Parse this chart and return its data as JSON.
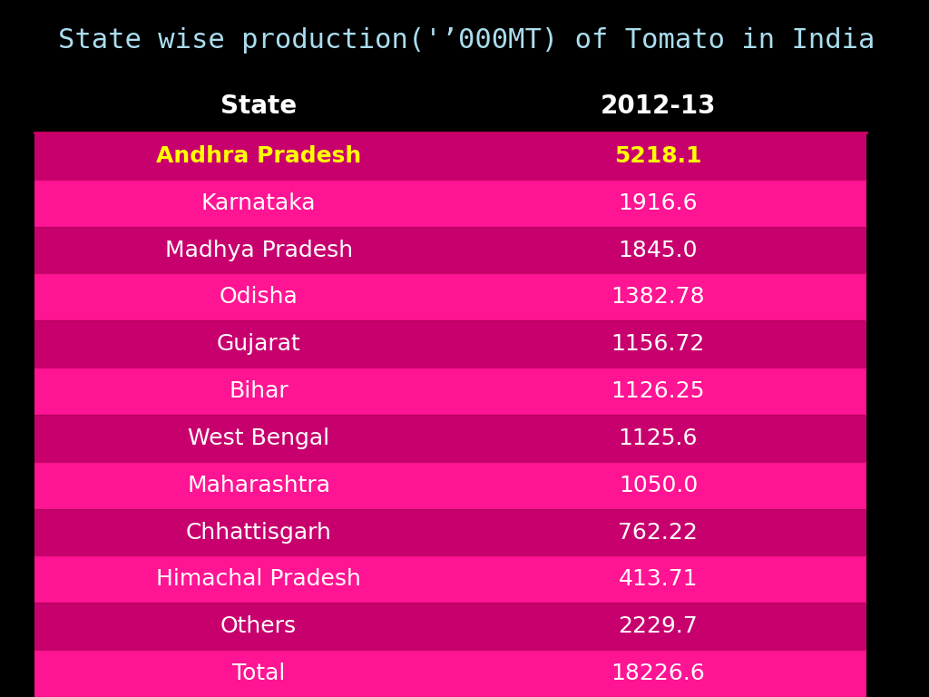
{
  "title": "State wise production('’000MT) of Tomato in India",
  "header": [
    "State",
    "2012-13"
  ],
  "rows": [
    {
      "state": "Andhra Pradesh",
      "value": "5218.1",
      "highlight": true
    },
    {
      "state": "Karnataka",
      "value": "1916.6",
      "highlight": false
    },
    {
      "state": "Madhya Pradesh",
      "value": "1845.0",
      "highlight": false
    },
    {
      "state": "Odisha",
      "value": "1382.78",
      "highlight": false
    },
    {
      "state": "Gujarat",
      "value": "1156.72",
      "highlight": false
    },
    {
      "state": "Bihar",
      "value": "1126.25",
      "highlight": false
    },
    {
      "state": "West Bengal",
      "value": "1125.6",
      "highlight": false
    },
    {
      "state": "Maharashtra",
      "value": "1050.0",
      "highlight": false
    },
    {
      "state": "Chhattisgarh",
      "value": "762.22",
      "highlight": false
    },
    {
      "state": "Himachal Pradesh",
      "value": "413.71",
      "highlight": false
    },
    {
      "state": "Others",
      "value": "2229.7",
      "highlight": false
    },
    {
      "state": "Total",
      "value": "18226.6",
      "highlight": false
    }
  ],
  "title_bg": "#000000",
  "title_color": "#aaddee",
  "title_font": "monospace",
  "header_bg": "#000000",
  "header_color": "#ffffff",
  "highlight_state_color": "#ffff00",
  "normal_text_color": "#ffffff",
  "fig_bg": "#000000",
  "row_colors": [
    "#c8006e",
    "#ff1493"
  ],
  "title_fontsize": 22,
  "header_fontsize": 20,
  "row_fontsize": 18
}
